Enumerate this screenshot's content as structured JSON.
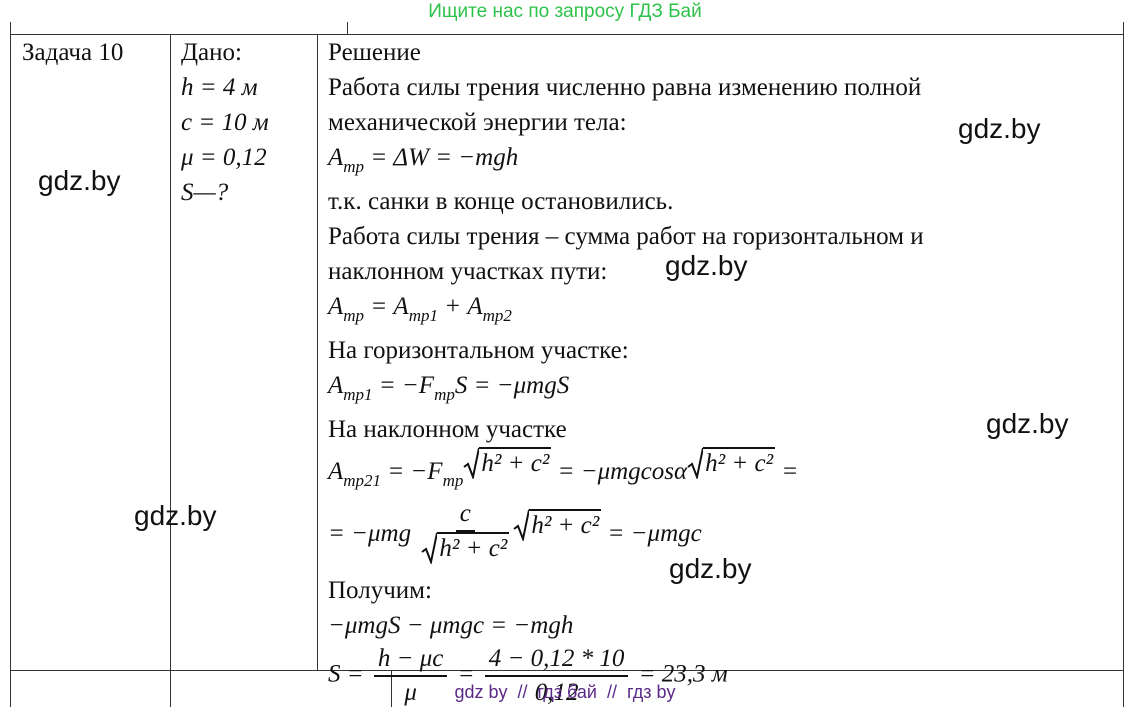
{
  "banner": "Ищите нас по запросу ГДЗ Бай",
  "table": {
    "task": "Задача 10",
    "given": [
      "Дано:",
      "h = 4 м",
      "c = 10 м",
      "μ = 0,12",
      "S—?"
    ],
    "solution": [
      "Решение",
      "Работа силы трения численно равна изменению полной",
      "механической энергии тела:",
      [
        "A",
        {
          "sub": "тр"
        },
        " = ΔW = −mgh"
      ],
      "т.к. санки в конце остановились.",
      "Работа силы трения – сумма работ на горизонтальном и",
      "наклонном участках пути:",
      [
        "A",
        {
          "sub": "тр"
        },
        " = A",
        {
          "sub": "тр1"
        },
        " + A",
        {
          "sub": "тр2"
        }
      ],
      "На горизонтальном участке:",
      [
        "A",
        {
          "sub": "тр1"
        },
        " = −F",
        {
          "sub": "тр"
        },
        "S = −μmgS"
      ],
      "На наклонном участке",
      [
        "A",
        {
          "sub": "тр21"
        },
        " = −F",
        {
          "sub": "тр"
        },
        {
          "sqrt": "h² + c²"
        },
        " = −μmgcosα",
        {
          "sqrt": "h² + c²"
        },
        " ="
      ],
      [
        "= −μmg ",
        {
          "num": [
            "c"
          ],
          "den": [
            {
              "sqrt": "h² + c²"
            }
          ]
        },
        {
          "sqrt": "h² + c²"
        },
        " = −μmgc"
      ],
      "Получим:",
      [
        "−μmgS − μmgc = −mgh"
      ],
      [
        "S = ",
        {
          "num": [
            "h − μc"
          ],
          "den": [
            "μ"
          ]
        },
        " = ",
        {
          "num": [
            "4 − 0,12 * 10"
          ],
          "den": [
            "0,12"
          ]
        },
        " = 23,3 м"
      ]
    ]
  },
  "watermarks": [
    "gdz.by",
    "gdz.by",
    "gdz.by",
    "gdz.by",
    "gdz.by",
    "gdz.by"
  ],
  "footer": "gdz by  //  гдз бай  //  гдз by"
}
